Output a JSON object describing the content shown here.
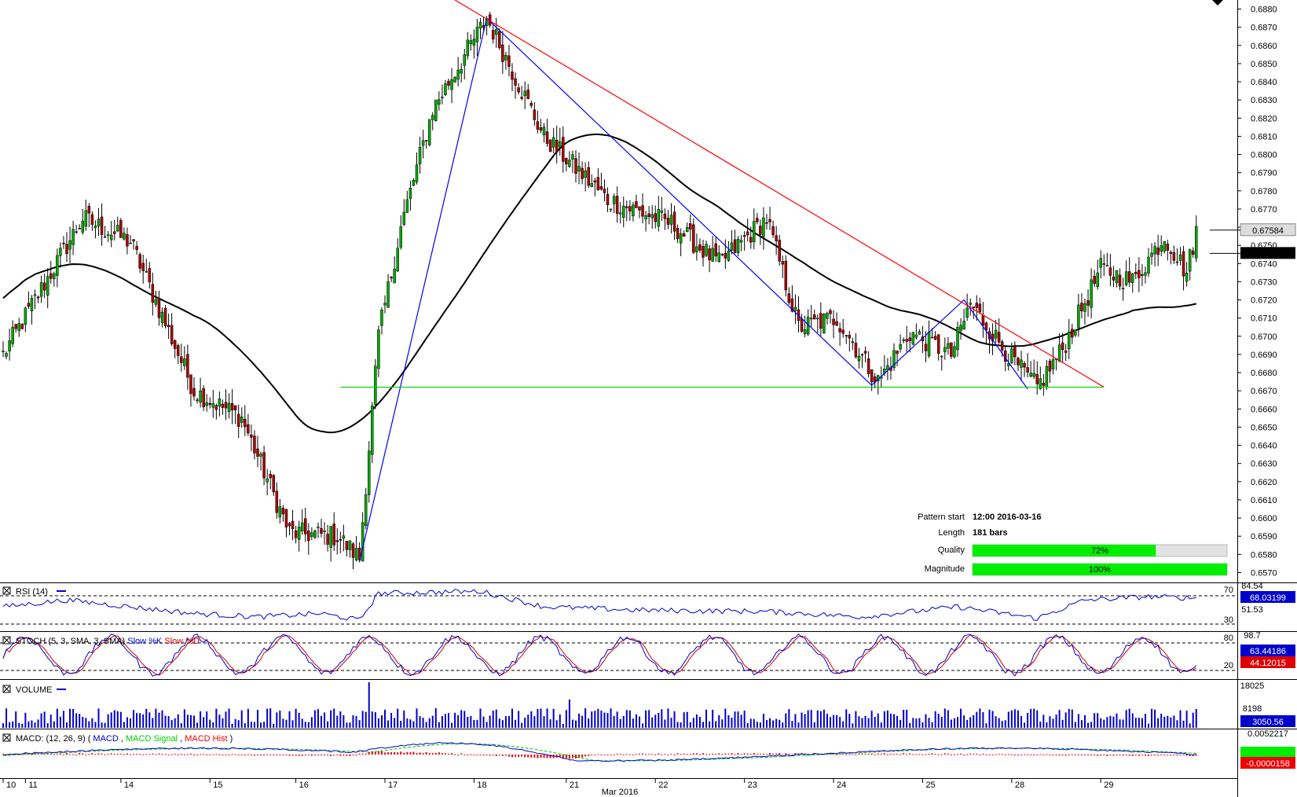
{
  "chart_data": [
    {
      "type": "candlestick",
      "panel": "price",
      "ylim": [
        0.6565,
        0.6885
      ],
      "price_ticks": [
        "0.6880",
        "0.6870",
        "0.6860",
        "0.6850",
        "0.6840",
        "0.6830",
        "0.6820",
        "0.6810",
        "0.6800",
        "0.6790",
        "0.6780",
        "0.6770",
        "0.6760",
        "0.6750",
        "0.6740",
        "0.6730",
        "0.6720",
        "0.6710",
        "0.6700",
        "0.6690",
        "0.6680",
        "0.6670",
        "0.6660",
        "0.6650",
        "0.6640",
        "0.6630",
        "0.6620",
        "0.6610",
        "0.6600",
        "0.6590",
        "0.6580",
        "0.6570"
      ],
      "current_price_label": "0.67584",
      "current_price": 0.67584,
      "ma_price_label": "0.67456",
      "ma_price": 0.67456,
      "x_labels": [
        "10",
        "11",
        "14",
        "15",
        "16",
        "17",
        "18",
        "21",
        "22",
        "23",
        "24",
        "25",
        "28",
        "29"
      ],
      "month_label": "Mar 2016",
      "key_prices": [
        {
          "bar": 0,
          "price": 0.669
        },
        {
          "bar": 25,
          "price": 0.6765
        },
        {
          "bar": 40,
          "price": 0.6752
        },
        {
          "bar": 60,
          "price": 0.667
        },
        {
          "bar": 75,
          "price": 0.6655
        },
        {
          "bar": 90,
          "price": 0.6592
        },
        {
          "bar": 105,
          "price": 0.659
        },
        {
          "bar": 112,
          "price": 0.6578
        },
        {
          "bar": 118,
          "price": 0.67
        },
        {
          "bar": 125,
          "price": 0.676
        },
        {
          "bar": 135,
          "price": 0.6825
        },
        {
          "bar": 152,
          "price": 0.6875
        },
        {
          "bar": 170,
          "price": 0.681
        },
        {
          "bar": 190,
          "price": 0.6775
        },
        {
          "bar": 210,
          "price": 0.6762
        },
        {
          "bar": 225,
          "price": 0.674
        },
        {
          "bar": 240,
          "price": 0.6765
        },
        {
          "bar": 250,
          "price": 0.6705
        },
        {
          "bar": 262,
          "price": 0.671
        },
        {
          "bar": 275,
          "price": 0.6675
        },
        {
          "bar": 285,
          "price": 0.6702
        },
        {
          "bar": 298,
          "price": 0.669
        },
        {
          "bar": 304,
          "price": 0.6718
        },
        {
          "bar": 318,
          "price": 0.6685
        },
        {
          "bar": 325,
          "price": 0.6672
        },
        {
          "bar": 333,
          "price": 0.6693
        },
        {
          "bar": 345,
          "price": 0.6737
        },
        {
          "bar": 355,
          "price": 0.673
        },
        {
          "bar": 365,
          "price": 0.6755
        },
        {
          "bar": 372,
          "price": 0.6735
        },
        {
          "bar": 375,
          "price": 0.6758
        }
      ],
      "pattern": {
        "start_label": "Pattern start",
        "start_value": "12:00 2016-03-16",
        "length_label": "Length",
        "length_value": "181 bars",
        "quality_label": "Quality",
        "quality_value": "72%",
        "quality": 0.72,
        "magnitude_label": "Magnitude",
        "magnitude_value": "100%",
        "magnitude": 1.0,
        "support_price": 0.6672,
        "points": [
          {
            "bar": 112,
            "price": 0.6576
          },
          {
            "bar": 152,
            "price": 0.6875
          },
          {
            "bar": 273,
            "price": 0.6673
          },
          {
            "bar": 302,
            "price": 0.672
          },
          {
            "bar": 322,
            "price": 0.6671
          }
        ],
        "resistance": [
          {
            "bar": 142,
            "price": 0.6885
          },
          {
            "bar": 346,
            "price": 0.6672
          }
        ]
      }
    },
    {
      "type": "line",
      "panel": "RSI",
      "title": "RSI (14)",
      "ticks": [
        "84.54",
        "51.53"
      ],
      "levels": [
        "70",
        "30"
      ],
      "current_label": "68.03199",
      "key_values": [
        {
          "bar": 0,
          "v": 55
        },
        {
          "bar": 20,
          "v": 65
        },
        {
          "bar": 40,
          "v": 55
        },
        {
          "bar": 60,
          "v": 45
        },
        {
          "bar": 80,
          "v": 40
        },
        {
          "bar": 100,
          "v": 45
        },
        {
          "bar": 112,
          "v": 35
        },
        {
          "bar": 118,
          "v": 75
        },
        {
          "bar": 150,
          "v": 78
        },
        {
          "bar": 170,
          "v": 55
        },
        {
          "bar": 200,
          "v": 50
        },
        {
          "bar": 240,
          "v": 48
        },
        {
          "bar": 270,
          "v": 40
        },
        {
          "bar": 300,
          "v": 55
        },
        {
          "bar": 325,
          "v": 38
        },
        {
          "bar": 340,
          "v": 65
        },
        {
          "bar": 360,
          "v": 70
        },
        {
          "bar": 375,
          "v": 68
        }
      ]
    },
    {
      "type": "line",
      "panel": "STOCH",
      "title_prefix": "STOCH (5, 3, SMA, 3, SMA)",
      "k_label": "Slow %K",
      "d_label": "Slow %D",
      "ticks": [
        "98.7"
      ],
      "levels": [
        "80",
        "20"
      ],
      "current_k_label": "63.44186",
      "current_d_label": "44.12015",
      "base_value": 50
    },
    {
      "type": "bar",
      "panel": "VOLUME",
      "title": "VOLUME",
      "ticks": [
        "18025",
        "8198"
      ],
      "current_label": "3050.56"
    },
    {
      "type": "line",
      "panel": "MACD",
      "title_prefix": "MACD: (12, 26, 9) (",
      "macd_label": "MACD",
      "signal_label": "MACD Signal",
      "hist_label": "MACD Hist",
      "ticks": [
        "0.0052217"
      ],
      "current_label": "-0.0000158"
    }
  ],
  "colors": {
    "bull": "#00aa00",
    "bear": "#aa0000",
    "ma": "#000000",
    "pattern": "#0000ff",
    "resistance": "#ff0000",
    "support": "#00cc00",
    "rsi": "#0000cc",
    "stoch_k": "#0000cc",
    "stoch_d": "#cc0000",
    "volume": "#0000cc",
    "macd": "#0000cc",
    "signal": "#00cc00",
    "hist": "#ee0000",
    "bar_fill": "#00ee00",
    "bar_bg": "#e2e2e2"
  }
}
